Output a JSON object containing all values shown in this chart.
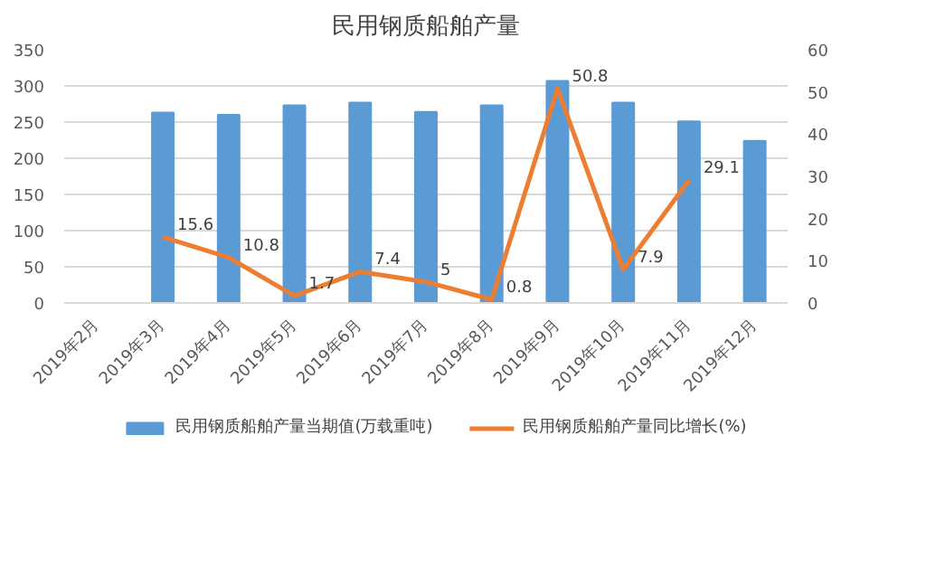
{
  "chart_data": {
    "type": "bar",
    "title": "民用钢质船舶产量",
    "categories": [
      "2019年2月",
      "2019年3月",
      "2019年4月",
      "2019年5月",
      "2019年6月",
      "2019年7月",
      "2019年8月",
      "2019年9月",
      "2019年10月",
      "2019年11月",
      "2019年12月"
    ],
    "series": [
      {
        "name": "民用钢质船舶产量当期值(万载重吨)",
        "color": "#5b9bd5",
        "values": [
          null,
          263,
          260,
          273,
          277,
          264,
          273,
          307,
          277,
          251,
          224
        ]
      },
      {
        "name": "民用钢质船舶产量同比增长(%)",
        "color": "#ed7d31",
        "type": "line",
        "axis": "y2",
        "values": [
          null,
          15.6,
          10.8,
          1.7,
          7.4,
          5,
          0.8,
          50.8,
          7.9,
          29.1,
          null
        ],
        "value_labels": [
          null,
          "15.6",
          "10.8",
          "1.7",
          "7.4",
          "5",
          "0.8",
          "50.8",
          "7.9",
          "29.1",
          null
        ]
      }
    ],
    "ylim": [
      0,
      350
    ],
    "yticks": [
      0,
      50,
      100,
      150,
      200,
      250,
      300,
      350
    ],
    "y2lim": [
      0,
      60
    ],
    "y2ticks": [
      0,
      10,
      20,
      30,
      40,
      50,
      60
    ],
    "grid": "y",
    "legend": "bottom",
    "marker": "none",
    "line_style": "solid"
  }
}
